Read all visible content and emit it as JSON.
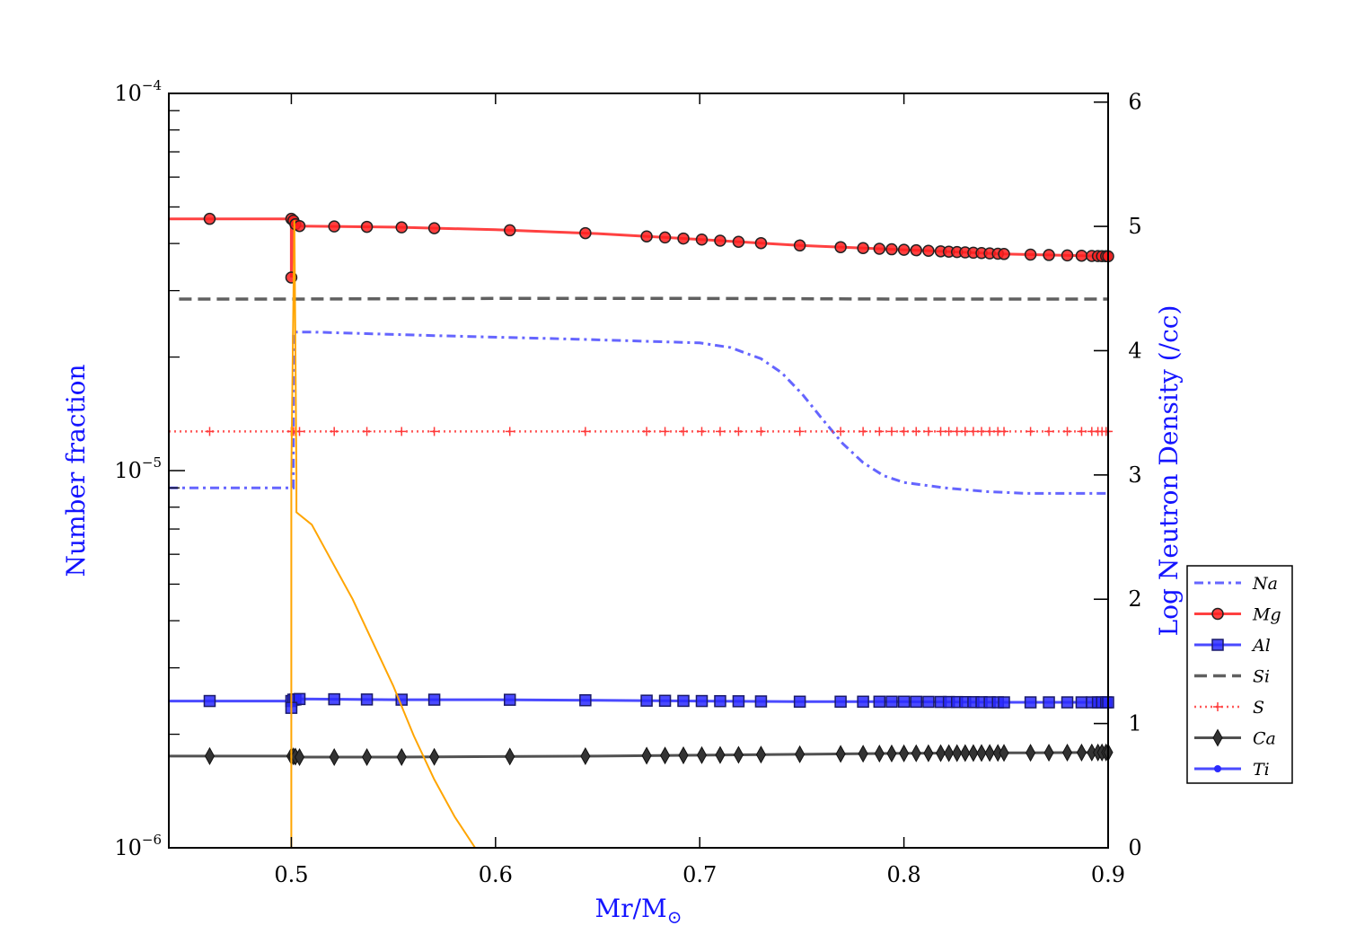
{
  "chart_data": {
    "type": "line",
    "xlabel": "Mr/M",
    "xlabel_subscript": "⊙",
    "ylabel_left": "Number fraction",
    "ylabel_right": "Log Neutron Density (/cc)",
    "axis_title_color": "#1414ff",
    "xlim": [
      0.44,
      0.9
    ],
    "ylim_left": [
      1e-06,
      0.0001
    ],
    "yscale_left": "log",
    "ylim_right": [
      0,
      6.07
    ],
    "x_ticks": [
      {
        "value": 0.5,
        "label": "0.5"
      },
      {
        "value": 0.6,
        "label": "0.6"
      },
      {
        "value": 0.7,
        "label": "0.7"
      },
      {
        "value": 0.8,
        "label": "0.8"
      },
      {
        "value": 0.9,
        "label": "0.9"
      }
    ],
    "y_left_ticks": [
      {
        "value": 1e-06,
        "base": "10",
        "exp": "−6"
      },
      {
        "value": 1e-05,
        "base": "10",
        "exp": "−5"
      },
      {
        "value": 0.0001,
        "base": "10",
        "exp": "−4"
      }
    ],
    "y_right_ticks": [
      {
        "value": 0,
        "label": "0"
      },
      {
        "value": 1,
        "label": "1"
      },
      {
        "value": 2,
        "label": "2"
      },
      {
        "value": 3,
        "label": "3"
      },
      {
        "value": 4,
        "label": "4"
      },
      {
        "value": 5,
        "label": "5"
      },
      {
        "value": 6,
        "label": "6"
      }
    ],
    "marker_x": [
      0.46,
      0.5,
      0.501,
      0.502,
      0.504,
      0.521,
      0.537,
      0.554,
      0.57,
      0.607,
      0.644,
      0.674,
      0.683,
      0.692,
      0.701,
      0.71,
      0.719,
      0.73,
      0.749,
      0.769,
      0.78,
      0.788,
      0.794,
      0.8,
      0.806,
      0.812,
      0.818,
      0.822,
      0.826,
      0.83,
      0.834,
      0.838,
      0.842,
      0.846,
      0.849,
      0.862,
      0.871,
      0.88,
      0.887,
      0.892,
      0.895,
      0.897,
      0.899,
      0.9
    ],
    "series": [
      {
        "name": "Na",
        "color": "#4a4aff",
        "dash": "10,5,3,5",
        "marker": "none",
        "width": 3,
        "points": [
          [
            0.44,
            9e-06
          ],
          [
            0.5,
            9e-06
          ],
          [
            0.501,
            9e-06
          ],
          [
            0.501,
            2.33e-05
          ],
          [
            0.51,
            2.33e-05
          ],
          [
            0.57,
            2.28e-05
          ],
          [
            0.64,
            2.23e-05
          ],
          [
            0.7,
            2.18e-05
          ],
          [
            0.715,
            2.12e-05
          ],
          [
            0.73,
            1.98e-05
          ],
          [
            0.74,
            1.82e-05
          ],
          [
            0.75,
            1.6e-05
          ],
          [
            0.76,
            1.37e-05
          ],
          [
            0.77,
            1.18e-05
          ],
          [
            0.78,
            1.05e-05
          ],
          [
            0.79,
            9.7e-06
          ],
          [
            0.8,
            9.3e-06
          ],
          [
            0.82,
            9e-06
          ],
          [
            0.84,
            8.8e-06
          ],
          [
            0.86,
            8.7e-06
          ],
          [
            0.9,
            8.7e-06
          ]
        ]
      },
      {
        "name": "Mg",
        "color": "#ff2020",
        "dash": "",
        "marker": "circle",
        "width": 3,
        "points": [
          [
            0.44,
            4.65e-05
          ],
          [
            0.46,
            4.65e-05
          ],
          [
            0.5,
            4.65e-05
          ],
          [
            0.5,
            3.25e-05
          ],
          [
            0.501,
            4.6e-05
          ],
          [
            0.502,
            4.5e-05
          ],
          [
            0.504,
            4.45e-05
          ],
          [
            0.55,
            4.42e-05
          ],
          [
            0.6,
            4.35e-05
          ],
          [
            0.65,
            4.25e-05
          ],
          [
            0.7,
            4.1e-05
          ],
          [
            0.75,
            3.95e-05
          ],
          [
            0.8,
            3.85e-05
          ],
          [
            0.85,
            3.75e-05
          ],
          [
            0.9,
            3.7e-05
          ]
        ]
      },
      {
        "name": "Al",
        "color": "#2a2aff",
        "dash": "",
        "marker": "square",
        "width": 3,
        "points": [
          [
            0.44,
            2.45e-06
          ],
          [
            0.46,
            2.45e-06
          ],
          [
            0.5,
            2.45e-06
          ],
          [
            0.5,
            2.35e-06
          ],
          [
            0.501,
            2.47e-06
          ],
          [
            0.504,
            2.48e-06
          ],
          [
            0.55,
            2.47e-06
          ],
          [
            0.6,
            2.47e-06
          ],
          [
            0.65,
            2.46e-06
          ],
          [
            0.7,
            2.45e-06
          ],
          [
            0.75,
            2.44e-06
          ],
          [
            0.8,
            2.44e-06
          ],
          [
            0.85,
            2.43e-06
          ],
          [
            0.9,
            2.43e-06
          ]
        ]
      },
      {
        "name": "Si",
        "color": "#444444",
        "dash": "14,7",
        "marker": "none",
        "width": 3.5,
        "points": [
          [
            0.445,
            2.85e-05
          ],
          [
            0.5,
            2.85e-05
          ],
          [
            0.6,
            2.86e-05
          ],
          [
            0.7,
            2.86e-05
          ],
          [
            0.8,
            2.85e-05
          ],
          [
            0.9,
            2.85e-05
          ]
        ]
      },
      {
        "name": "S",
        "color": "#ff3a3a",
        "dash": "2,4",
        "marker": "plus",
        "width": 2.5,
        "points": [
          [
            0.44,
            1.27e-05
          ],
          [
            0.9,
            1.27e-05
          ]
        ]
      },
      {
        "name": "Ca",
        "color": "#333333",
        "dash": "",
        "marker": "diamond",
        "width": 3,
        "points": [
          [
            0.44,
            1.75e-06
          ],
          [
            0.5,
            1.75e-06
          ],
          [
            0.504,
            1.74e-06
          ],
          [
            0.55,
            1.74e-06
          ],
          [
            0.6,
            1.745e-06
          ],
          [
            0.65,
            1.75e-06
          ],
          [
            0.7,
            1.76e-06
          ],
          [
            0.75,
            1.77e-06
          ],
          [
            0.8,
            1.78e-06
          ],
          [
            0.85,
            1.785e-06
          ],
          [
            0.9,
            1.79e-06
          ]
        ]
      },
      {
        "name": "Ti",
        "color": "#2a2aff",
        "dash": "",
        "marker": "dot",
        "width": 3,
        "points": []
      }
    ],
    "neutron_density": {
      "name": "neutron density",
      "axis": "right",
      "color": "#ffa500",
      "points": [
        [
          0.5,
          0
        ],
        [
          0.5,
          3.0
        ],
        [
          0.5015,
          5.05
        ],
        [
          0.5025,
          3.0
        ],
        [
          0.5025,
          2.7
        ],
        [
          0.51,
          2.6
        ],
        [
          0.52,
          2.3
        ],
        [
          0.53,
          2.0
        ],
        [
          0.54,
          1.65
        ],
        [
          0.55,
          1.3
        ],
        [
          0.56,
          0.9
        ],
        [
          0.57,
          0.55
        ],
        [
          0.58,
          0.25
        ],
        [
          0.59,
          0
        ]
      ]
    },
    "legend": {
      "position": "right",
      "entries": [
        "Na",
        "Mg",
        "Al",
        "Si",
        "S",
        "Ca",
        "Ti"
      ]
    }
  }
}
